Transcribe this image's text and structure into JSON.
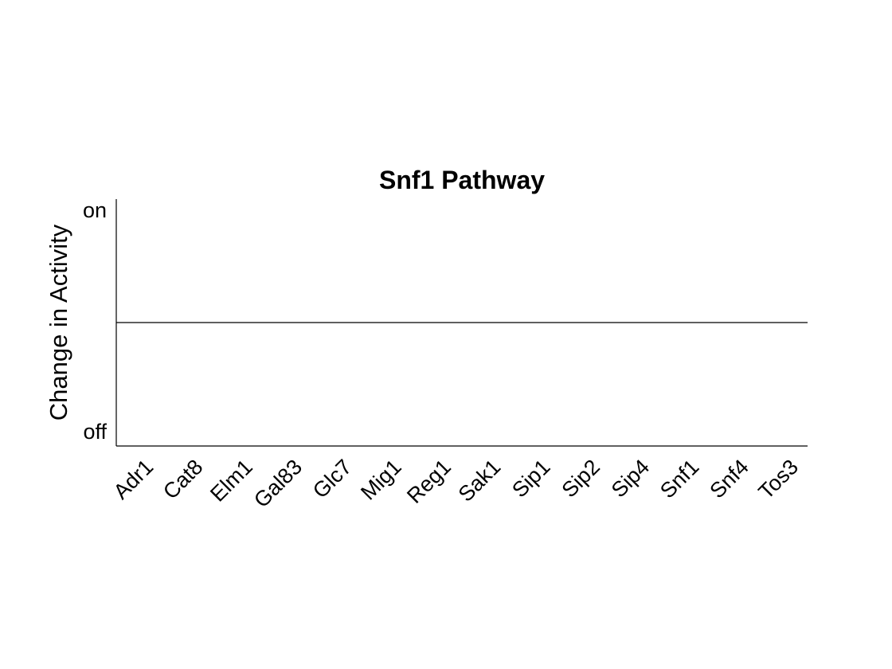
{
  "chart_data": {
    "type": "bar",
    "title": "Snf1 Pathway",
    "xlabel": "",
    "ylabel": "Change in Activity",
    "categories": [
      "Adr1",
      "Cat8",
      "Elm1",
      "Gal83",
      "Glc7",
      "Mig1",
      "Reg1",
      "Sak1",
      "Sip1",
      "Sip2",
      "Sip4",
      "Snf1",
      "Snf4",
      "Tos3"
    ],
    "values": [
      0,
      0,
      0,
      0,
      0,
      0,
      0,
      0,
      0,
      0,
      0,
      0,
      0,
      0
    ],
    "ylim": [
      -1,
      1
    ],
    "yticks": [
      {
        "value": 1,
        "label": "on"
      },
      {
        "value": -1,
        "label": "off"
      }
    ],
    "baseline": 0,
    "grid": false,
    "legend": "none"
  }
}
